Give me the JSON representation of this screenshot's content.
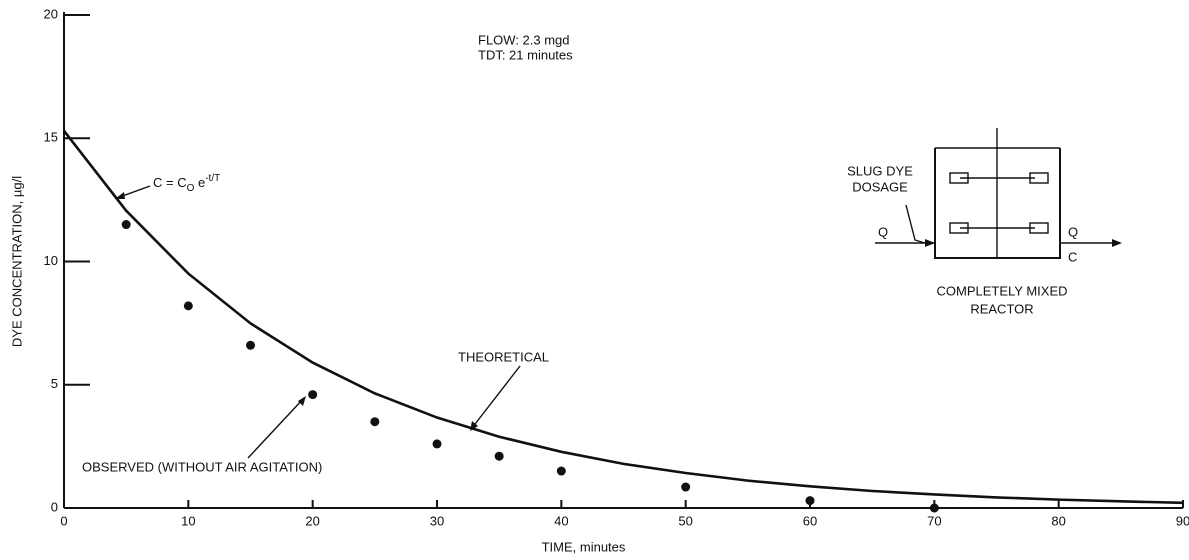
{
  "chart_data": {
    "type": "scatter",
    "x_label": "TIME, minutes",
    "y_label": "DYE CONCENTRATION, µg/l",
    "xlim": [
      0,
      90
    ],
    "ylim": [
      0,
      20
    ],
    "xticks": [
      0,
      10,
      20,
      30,
      40,
      50,
      60,
      70,
      80,
      90
    ],
    "yticks": [
      0,
      5,
      10,
      15,
      20
    ],
    "grid": false,
    "color": "#111111",
    "annotations": {
      "flow": "FLOW:  2.3 mgd",
      "tdt": "TDT:  21 minutes",
      "formula": {
        "base": "C = C",
        "sub": "O",
        "mid": " e",
        "sup": "-t/T"
      },
      "dosage": [
        "SLUG DYE",
        "DOSAGE"
      ],
      "q_in": "Q",
      "q_out": "Q",
      "c_out": "C",
      "reactor": [
        "COMPLETELY MIXED",
        "REACTOR"
      ]
    },
    "series": [
      {
        "name": "THEORETICAL",
        "kind": "line",
        "color": "#111111",
        "x": [
          0,
          5,
          10,
          15,
          20,
          25,
          30,
          35,
          40,
          45,
          50,
          55,
          60,
          65,
          70,
          75,
          80,
          85,
          90
        ],
        "values": [
          15.3,
          12.06,
          9.51,
          7.49,
          5.9,
          4.65,
          3.67,
          2.89,
          2.28,
          1.79,
          1.42,
          1.11,
          0.88,
          0.69,
          0.55,
          0.43,
          0.34,
          0.27,
          0.21
        ]
      },
      {
        "name": "OBSERVED  (WITHOUT AIR AGITATION)",
        "kind": "scatter",
        "color": "#111111",
        "x": [
          5,
          10,
          15,
          20,
          25,
          30,
          35,
          40,
          50,
          60,
          70
        ],
        "values": [
          11.5,
          8.2,
          6.6,
          4.6,
          3.5,
          2.6,
          2.1,
          1.5,
          0.85,
          0.3,
          0
        ]
      }
    ]
  }
}
